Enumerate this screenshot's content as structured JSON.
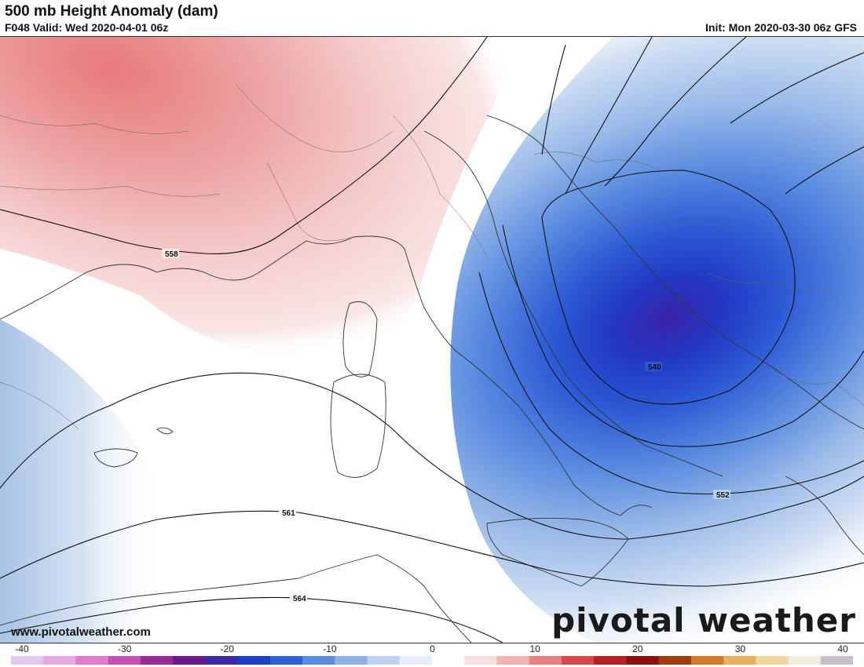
{
  "header": {
    "title": "500 mb Height Anomaly (dam)",
    "valid": "F048 Valid: Wed 2020-04-01 06z",
    "init": "Init: Mon 2020-03-30 06z GFS"
  },
  "contour_labels": [
    "558",
    "561",
    "564",
    "540",
    "552"
  ],
  "footer": {
    "website": "www.pivotalweather.com",
    "brand": "pivotal weather"
  },
  "colorbar": {
    "ticks": [
      "-40",
      "-30",
      "-20",
      "-10",
      "0",
      "10",
      "20",
      "30",
      "40"
    ],
    "min": -40,
    "max": 40,
    "colors": [
      "#e3c9ef",
      "#e6a8e0",
      "#e07bd0",
      "#c54fb5",
      "#9a2a95",
      "#6a1a8a",
      "#3a2aa5",
      "#1d3fc8",
      "#2c62d6",
      "#5b8be0",
      "#8fb0e8",
      "#c1d3f0",
      "#e6eef8",
      "#ffffff",
      "#f9e0e0",
      "#f1b4b4",
      "#e88080",
      "#d94848",
      "#b82020",
      "#8a1010",
      "#a33a10",
      "#d27a2a",
      "#e8b060",
      "#f0d8a0",
      "#f3ece0",
      "#c8c0c8"
    ]
  }
}
